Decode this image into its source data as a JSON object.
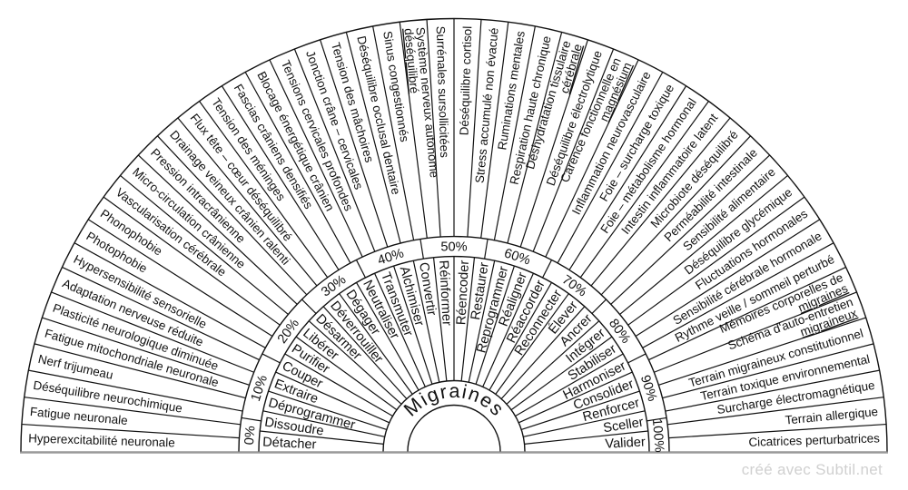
{
  "title": "Migraines",
  "watermark": "créé avec Subtil.net",
  "colors": {
    "stroke": "#111111",
    "baseline": "#999999",
    "watermark": "#d0d0d0",
    "background": "#ffffff"
  },
  "chart_data": {
    "type": "pendulum-dial",
    "title": "Migraines",
    "percent_ring": {
      "labels": [
        "0%",
        "10%",
        "20%",
        "30%",
        "40%",
        "50%",
        "60%",
        "70%",
        "80%",
        "90%",
        "100%"
      ],
      "range": [
        0,
        100
      ]
    },
    "outer_ring_sectors": [
      {
        "lines": [
          "Hyperexcitabilité neuronale"
        ]
      },
      {
        "lines": [
          "Fatigue neuronale"
        ]
      },
      {
        "lines": [
          "Déséquilibre neurochimique"
        ]
      },
      {
        "lines": [
          "Nerf trijumeau"
        ]
      },
      {
        "lines": [
          "Fatigue mitochondriale neuronale"
        ]
      },
      {
        "lines": [
          "Plasticité neurologique diminuée"
        ]
      },
      {
        "lines": [
          "Adaptation nerveuse réduite"
        ]
      },
      {
        "lines": [
          "Hypersensibilité sensorielle"
        ]
      },
      {
        "lines": [
          "Photophobie"
        ]
      },
      {
        "lines": [
          "Phonophobie"
        ]
      },
      {
        "lines": [
          "Vascularisation cérébrale"
        ]
      },
      {
        "lines": [
          "Micro-circulation crânienne"
        ]
      },
      {
        "lines": [
          "Pression intracrânienne"
        ]
      },
      {
        "lines": [
          "Drainage veineux crânien ralenti"
        ]
      },
      {
        "lines": [
          "Flux tête – cœur déséquilibré"
        ]
      },
      {
        "lines": [
          "Tension des méninges"
        ]
      },
      {
        "lines": [
          "Fascias crâniens densifiés"
        ]
      },
      {
        "lines": [
          "Blocage énergétique crânien"
        ]
      },
      {
        "lines": [
          "Tensions cervicales profondes"
        ]
      },
      {
        "lines": [
          "Jonction crâne – cervicales"
        ]
      },
      {
        "lines": [
          "Tension des mâchoires"
        ]
      },
      {
        "lines": [
          "Déséquilibre occlusal dentaire"
        ]
      },
      {
        "lines": [
          "Sinus congestionnés"
        ]
      },
      {
        "lines": [
          "Système nerveux autonome",
          "déséquilibré"
        ]
      },
      {
        "lines": [
          "Surrénales sursollicitées"
        ]
      },
      {
        "lines": [
          "Déséquilibre cortisol"
        ]
      },
      {
        "lines": [
          "Stress accumulé non évacué"
        ]
      },
      {
        "lines": [
          "Ruminations mentales"
        ]
      },
      {
        "lines": [
          "Respiration haute chronique"
        ]
      },
      {
        "lines": [
          "Déshydratation tissulaire",
          "cérébrale"
        ]
      },
      {
        "lines": [
          "Déséquilibre électrolytique"
        ]
      },
      {
        "lines": [
          "Carence fonctionnelle en",
          "magnésium"
        ]
      },
      {
        "lines": [
          "Inflammation neurovasculaire"
        ]
      },
      {
        "lines": [
          "Foie – surcharge toxique"
        ]
      },
      {
        "lines": [
          "Foie – métabolisme hormonal"
        ]
      },
      {
        "lines": [
          "Intestin inflammatoire latent"
        ]
      },
      {
        "lines": [
          "Microbiote déséquilibré"
        ]
      },
      {
        "lines": [
          "Perméabilité intestinale"
        ]
      },
      {
        "lines": [
          "Sensibilité alimentaire"
        ]
      },
      {
        "lines": [
          "Déséquilibre glycémique"
        ]
      },
      {
        "lines": [
          "Fluctuations hormonales"
        ]
      },
      {
        "lines": [
          "Sensibilité cérébrale hormonale"
        ]
      },
      {
        "lines": [
          "Rythme veille / sommeil perturbé"
        ]
      },
      {
        "lines": [
          "Mémoires corporelles de",
          "migraines"
        ]
      },
      {
        "lines": [
          "Schéma d'auto-entretien",
          "migraineux"
        ]
      },
      {
        "lines": [
          "Terrain migraineux constitutionnel"
        ]
      },
      {
        "lines": [
          "Terrain toxique environnemental"
        ]
      },
      {
        "lines": [
          "Surcharge électromagnétique"
        ]
      },
      {
        "lines": [
          "Terrain allergique"
        ]
      },
      {
        "lines": [
          "Cicatrices perturbatrices"
        ]
      }
    ],
    "action_ring_sectors": [
      "Détacher",
      "Dissoudre",
      "Déprogrammer",
      "Extraire",
      "Couper",
      "Purifier",
      "Libérer",
      "Désarmer",
      "Déverrouiller",
      "Dégager",
      "Neutraliser",
      "Transmuter",
      "Alchimiser",
      "Convertir",
      "Réinformer",
      "Réencoder",
      "Restaurer",
      "Reprogrammer",
      "Réaligner",
      "Réaccorder",
      "Reconnecter",
      "Élever",
      "Ancrer",
      "Intégrer",
      "Stabiliser",
      "Harmoniser",
      "Consolider",
      "Renforcer",
      "Sceller",
      "Valider"
    ]
  }
}
